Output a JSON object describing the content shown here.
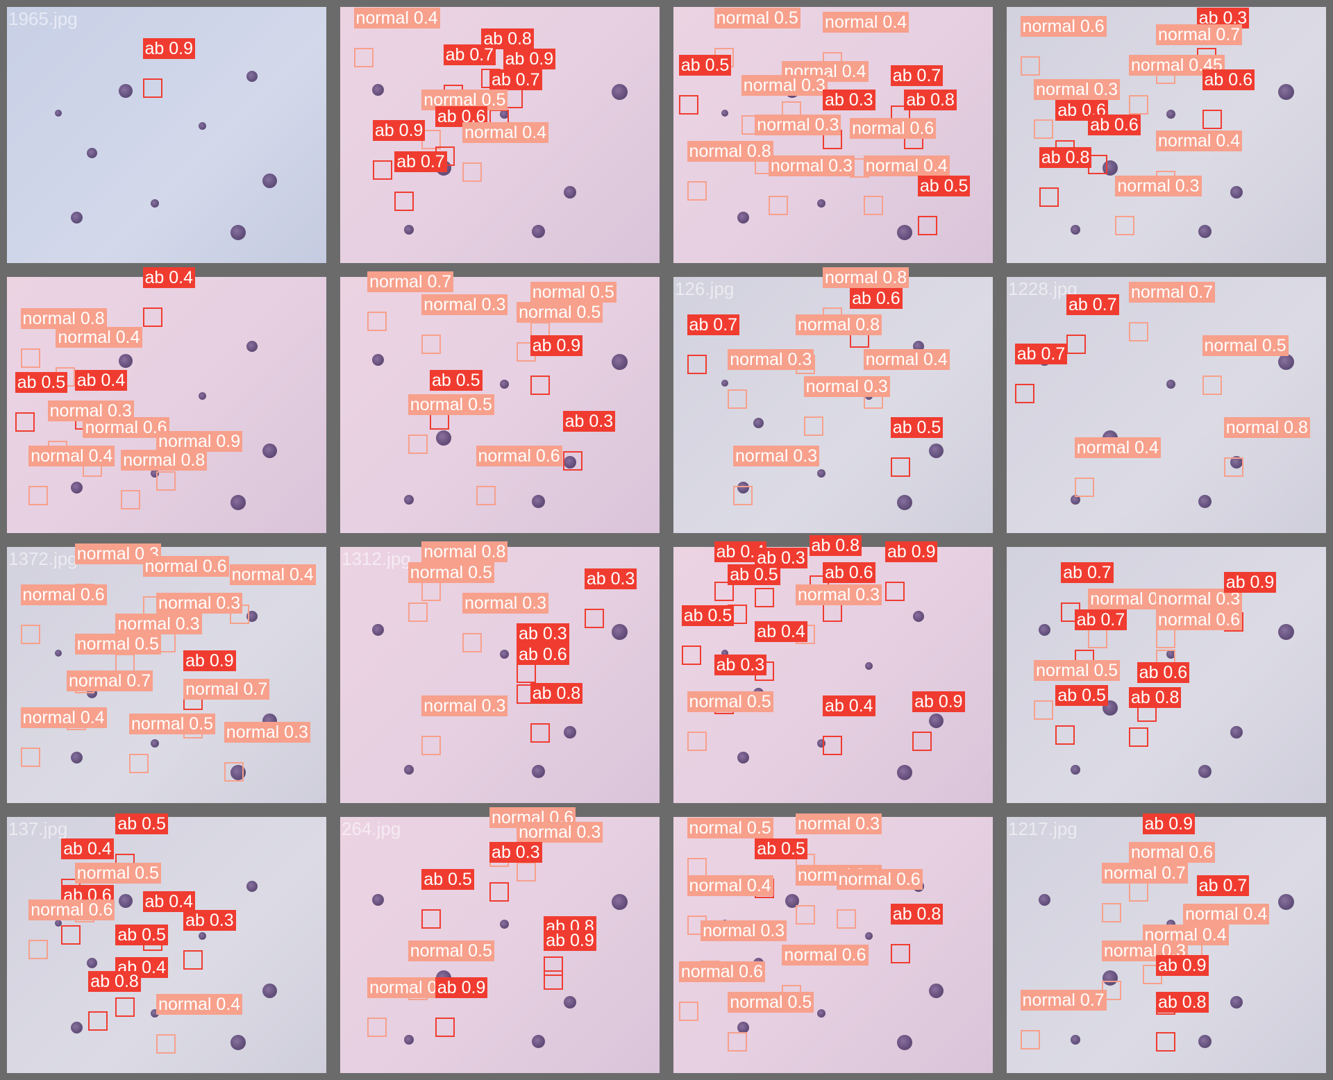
{
  "colors": {
    "ab_label": "#f03c30",
    "normal_label": "#f7a08c",
    "tile_border": "#6b6b6b"
  },
  "tiles": [
    {
      "filename": "1965.jpg",
      "tone": "blue",
      "detections": [
        {
          "label": "ab 0.9"
        }
      ]
    },
    {
      "filename": "",
      "tone": "pink",
      "detections": [
        {
          "label": "normal 0.4"
        },
        {
          "label": "ab 0.8"
        },
        {
          "label": "ab 0.7"
        },
        {
          "label": "ab 0.9"
        },
        {
          "label": "ab 0.7"
        },
        {
          "label": "normal 0.5"
        },
        {
          "label": "ab 0.6"
        },
        {
          "label": "ab 0.9"
        },
        {
          "label": "normal 0.4"
        },
        {
          "label": "ab 0.7"
        }
      ]
    },
    {
      "filename": "",
      "tone": "pink",
      "detections": [
        {
          "label": "normal 0.5"
        },
        {
          "label": "normal 0.4"
        },
        {
          "label": "ab 0.5"
        },
        {
          "label": "normal 0.4"
        },
        {
          "label": "ab 0.7"
        },
        {
          "label": "normal 0.3"
        },
        {
          "label": "ab 0.3"
        },
        {
          "label": "ab 0.8"
        },
        {
          "label": "normal 0.3"
        },
        {
          "label": "normal 0.6"
        },
        {
          "label": "normal 0.8"
        },
        {
          "label": "normal 0.3"
        },
        {
          "label": "normal 0.4"
        },
        {
          "label": "ab 0.5"
        }
      ]
    },
    {
      "filename": "",
      "tone": "grey",
      "detections": [
        {
          "label": "normal 0.6"
        },
        {
          "label": "ab 0.3"
        },
        {
          "label": "normal 0.7"
        },
        {
          "label": "normal 0.45"
        },
        {
          "label": "ab 0.6"
        },
        {
          "label": "normal 0.3"
        },
        {
          "label": "ab 0.6"
        },
        {
          "label": "ab 0.6"
        },
        {
          "label": "normal 0.4"
        },
        {
          "label": "ab 0.8"
        },
        {
          "label": "normal 0.3"
        }
      ]
    },
    {
      "filename": "",
      "tone": "pink",
      "detections": [
        {
          "label": "ab 0.4"
        },
        {
          "label": "normal 0.8"
        },
        {
          "label": "normal 0.4"
        },
        {
          "label": "ab 0.5"
        },
        {
          "label": "ab 0.4"
        },
        {
          "label": "normal 0.3"
        },
        {
          "label": "normal 0.6"
        },
        {
          "label": "normal 0.9"
        },
        {
          "label": "normal 0.4"
        },
        {
          "label": "normal 0.8"
        }
      ]
    },
    {
      "filename": "",
      "tone": "pink",
      "detections": [
        {
          "label": "normal 0.7"
        },
        {
          "label": "normal 0.5"
        },
        {
          "label": "normal 0.3"
        },
        {
          "label": "normal 0.5"
        },
        {
          "label": "ab 0.9"
        },
        {
          "label": "ab 0.5"
        },
        {
          "label": "normal 0.5"
        },
        {
          "label": "ab 0.3"
        },
        {
          "label": "normal 0.6"
        }
      ]
    },
    {
      "filename": "126.jpg",
      "tone": "grey",
      "detections": [
        {
          "label": "normal 0.8"
        },
        {
          "label": "ab 0.6"
        },
        {
          "label": "ab 0.7"
        },
        {
          "label": "normal 0.8"
        },
        {
          "label": "normal 0.3"
        },
        {
          "label": "normal 0.4"
        },
        {
          "label": "normal 0.3"
        },
        {
          "label": "ab 0.5"
        },
        {
          "label": "normal 0.3"
        }
      ]
    },
    {
      "filename": "1228.jpg",
      "tone": "grey",
      "detections": [
        {
          "label": "ab 0.7"
        },
        {
          "label": "normal 0.7"
        },
        {
          "label": "normal 0.5"
        },
        {
          "label": "ab 0.7"
        },
        {
          "label": "normal 0.8"
        },
        {
          "label": "normal 0.4"
        }
      ]
    },
    {
      "filename": "1372.jpg",
      "tone": "grey",
      "detections": [
        {
          "label": "normal 0.3"
        },
        {
          "label": "normal 0.6"
        },
        {
          "label": "normal 0.4"
        },
        {
          "label": "normal 0.6"
        },
        {
          "label": "normal 0.3"
        },
        {
          "label": "normal 0.3"
        },
        {
          "label": "normal 0.5"
        },
        {
          "label": "ab 0.9"
        },
        {
          "label": "normal 0.7"
        },
        {
          "label": "normal 0.7"
        },
        {
          "label": "normal 0.4"
        },
        {
          "label": "normal 0.5"
        },
        {
          "label": "normal 0.3"
        }
      ]
    },
    {
      "filename": "1312.jpg",
      "tone": "pink",
      "detections": [
        {
          "label": "normal 0.8"
        },
        {
          "label": "normal 0.5"
        },
        {
          "label": "ab 0.3"
        },
        {
          "label": "normal 0.3"
        },
        {
          "label": "ab 0.3"
        },
        {
          "label": "ab 0.6"
        },
        {
          "label": "ab 0.8"
        },
        {
          "label": "normal 0.3"
        }
      ]
    },
    {
      "filename": "",
      "tone": "pink",
      "detections": [
        {
          "label": "ab 0.4"
        },
        {
          "label": "ab 0.8"
        },
        {
          "label": "ab 0.3"
        },
        {
          "label": "ab 0.9"
        },
        {
          "label": "ab 0.5"
        },
        {
          "label": "ab 0.6"
        },
        {
          "label": "normal 0.3"
        },
        {
          "label": "ab 0.5"
        },
        {
          "label": "ab 0.4"
        },
        {
          "label": "ab 0.3"
        },
        {
          "label": "normal 0.5"
        },
        {
          "label": "ab 0.4"
        },
        {
          "label": "ab 0.9"
        }
      ]
    },
    {
      "filename": "",
      "tone": "grey",
      "detections": [
        {
          "label": "ab 0.7"
        },
        {
          "label": "normal 0.3"
        },
        {
          "label": "normal 0.3"
        },
        {
          "label": "ab 0.7"
        },
        {
          "label": "ab 0.9"
        },
        {
          "label": "normal 0.6"
        },
        {
          "label": "normal 0.5"
        },
        {
          "label": "ab 0.6"
        },
        {
          "label": "ab 0.5"
        },
        {
          "label": "ab 0.8"
        }
      ]
    },
    {
      "filename": "137.jpg",
      "tone": "grey",
      "detections": [
        {
          "label": "ab 0.5"
        },
        {
          "label": "ab 0.4"
        },
        {
          "label": "normal 0.5"
        },
        {
          "label": "ab 0.6"
        },
        {
          "label": "normal 0.6"
        },
        {
          "label": "ab 0.4"
        },
        {
          "label": "ab 0.5"
        },
        {
          "label": "ab 0.3"
        },
        {
          "label": "ab 0.4"
        },
        {
          "label": "ab 0.8"
        },
        {
          "label": "normal 0.4"
        }
      ]
    },
    {
      "filename": "264.jpg",
      "tone": "pink",
      "detections": [
        {
          "label": "normal 0.6"
        },
        {
          "label": "normal 0.3"
        },
        {
          "label": "ab 0.3"
        },
        {
          "label": "ab 0.5"
        },
        {
          "label": "ab 0.8"
        },
        {
          "label": "normal 0.5"
        },
        {
          "label": "ab 0.9"
        },
        {
          "label": "normal 0.5"
        },
        {
          "label": "ab 0.9"
        }
      ]
    },
    {
      "filename": "",
      "tone": "pink",
      "detections": [
        {
          "label": "normal 0.5"
        },
        {
          "label": "normal 0.3"
        },
        {
          "label": "ab 0.5"
        },
        {
          "label": "normal 0.4"
        },
        {
          "label": "normal 0.4"
        },
        {
          "label": "normal 0.3"
        },
        {
          "label": "ab 0.8"
        },
        {
          "label": "normal 0.6"
        },
        {
          "label": "normal 0.6"
        },
        {
          "label": "normal 0.5"
        },
        {
          "label": "normal 0.6"
        }
      ]
    },
    {
      "filename": "1217.jpg",
      "tone": "grey",
      "detections": [
        {
          "label": "ab 0.9"
        },
        {
          "label": "normal 0.6"
        },
        {
          "label": "normal 0.7"
        },
        {
          "label": "ab 0.7"
        },
        {
          "label": "normal 0.4"
        },
        {
          "label": "normal 0.4"
        },
        {
          "label": "normal 0.3"
        },
        {
          "label": "ab 0.9"
        },
        {
          "label": "normal 0.7"
        },
        {
          "label": "ab 0.8"
        }
      ]
    }
  ]
}
